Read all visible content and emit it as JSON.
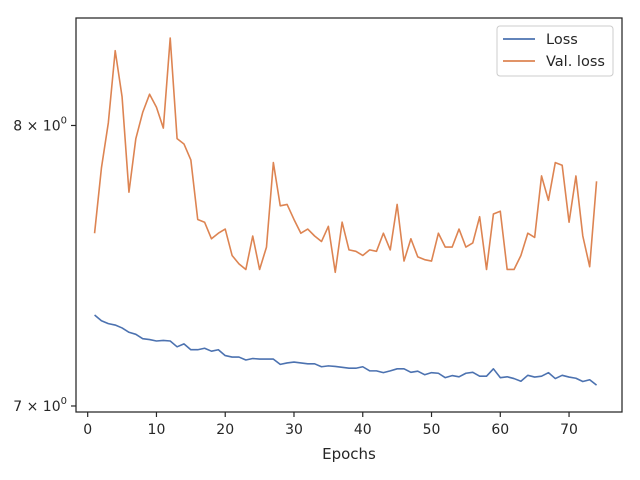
{
  "chart_data": {
    "type": "line",
    "title": "",
    "xlabel": "Epochs",
    "ylabel": "",
    "y_scale": "log",
    "grid": false,
    "legend_position": "top-right",
    "xlim": [
      -1.7,
      77.7
    ],
    "ylim": [
      6.98,
      8.42
    ],
    "x_ticks": [
      0,
      10,
      20,
      30,
      40,
      50,
      60,
      70
    ],
    "y_ticks": [
      {
        "value": 7,
        "label_base": "7 × 10",
        "label_exp": "0"
      },
      {
        "value": 8,
        "label_base": "8 × 10",
        "label_exp": "0"
      }
    ],
    "x": [
      1,
      2,
      3,
      4,
      5,
      6,
      7,
      8,
      9,
      10,
      11,
      12,
      13,
      14,
      15,
      16,
      17,
      18,
      19,
      20,
      21,
      22,
      23,
      24,
      25,
      26,
      27,
      28,
      29,
      30,
      31,
      32,
      33,
      34,
      35,
      36,
      37,
      38,
      39,
      40,
      41,
      42,
      43,
      44,
      45,
      46,
      47,
      48,
      49,
      50,
      51,
      52,
      53,
      54,
      55,
      56,
      57,
      58,
      59,
      60,
      61,
      62,
      63,
      64,
      65,
      66,
      67,
      68,
      69,
      70,
      71,
      72,
      73,
      74
    ],
    "series": [
      {
        "name": "Loss",
        "color": "#4c72b0",
        "values": [
          7.31,
          7.29,
          7.28,
          7.275,
          7.265,
          7.25,
          7.243,
          7.228,
          7.225,
          7.22,
          7.222,
          7.22,
          7.2,
          7.21,
          7.19,
          7.19,
          7.195,
          7.185,
          7.19,
          7.17,
          7.165,
          7.165,
          7.155,
          7.16,
          7.158,
          7.158,
          7.158,
          7.14,
          7.145,
          7.148,
          7.145,
          7.142,
          7.142,
          7.132,
          7.135,
          7.133,
          7.13,
          7.127,
          7.127,
          7.132,
          7.118,
          7.118,
          7.112,
          7.118,
          7.125,
          7.125,
          7.113,
          7.117,
          7.105,
          7.112,
          7.11,
          7.095,
          7.102,
          7.098,
          7.11,
          7.113,
          7.1,
          7.1,
          7.125,
          7.095,
          7.098,
          7.092,
          7.083,
          7.103,
          7.097,
          7.1,
          7.112,
          7.092,
          7.103,
          7.097,
          7.093,
          7.082,
          7.088,
          7.07
        ]
      },
      {
        "name": "Val. loss",
        "color": "#dd8452",
        "values": [
          7.6,
          7.84,
          8.01,
          8.29,
          8.11,
          7.75,
          7.95,
          8.05,
          8.12,
          8.07,
          7.99,
          8.34,
          7.95,
          7.93,
          7.87,
          7.65,
          7.64,
          7.58,
          7.6,
          7.615,
          7.52,
          7.49,
          7.47,
          7.59,
          7.47,
          7.55,
          7.86,
          7.7,
          7.705,
          7.65,
          7.6,
          7.615,
          7.59,
          7.57,
          7.625,
          7.46,
          7.64,
          7.54,
          7.535,
          7.52,
          7.54,
          7.535,
          7.6,
          7.54,
          7.705,
          7.5,
          7.58,
          7.515,
          7.505,
          7.5,
          7.6,
          7.55,
          7.55,
          7.615,
          7.55,
          7.565,
          7.66,
          7.47,
          7.67,
          7.68,
          7.47,
          7.47,
          7.52,
          7.6,
          7.585,
          7.81,
          7.72,
          7.86,
          7.85,
          7.64,
          7.81,
          7.59,
          7.48,
          7.79
        ]
      }
    ]
  }
}
